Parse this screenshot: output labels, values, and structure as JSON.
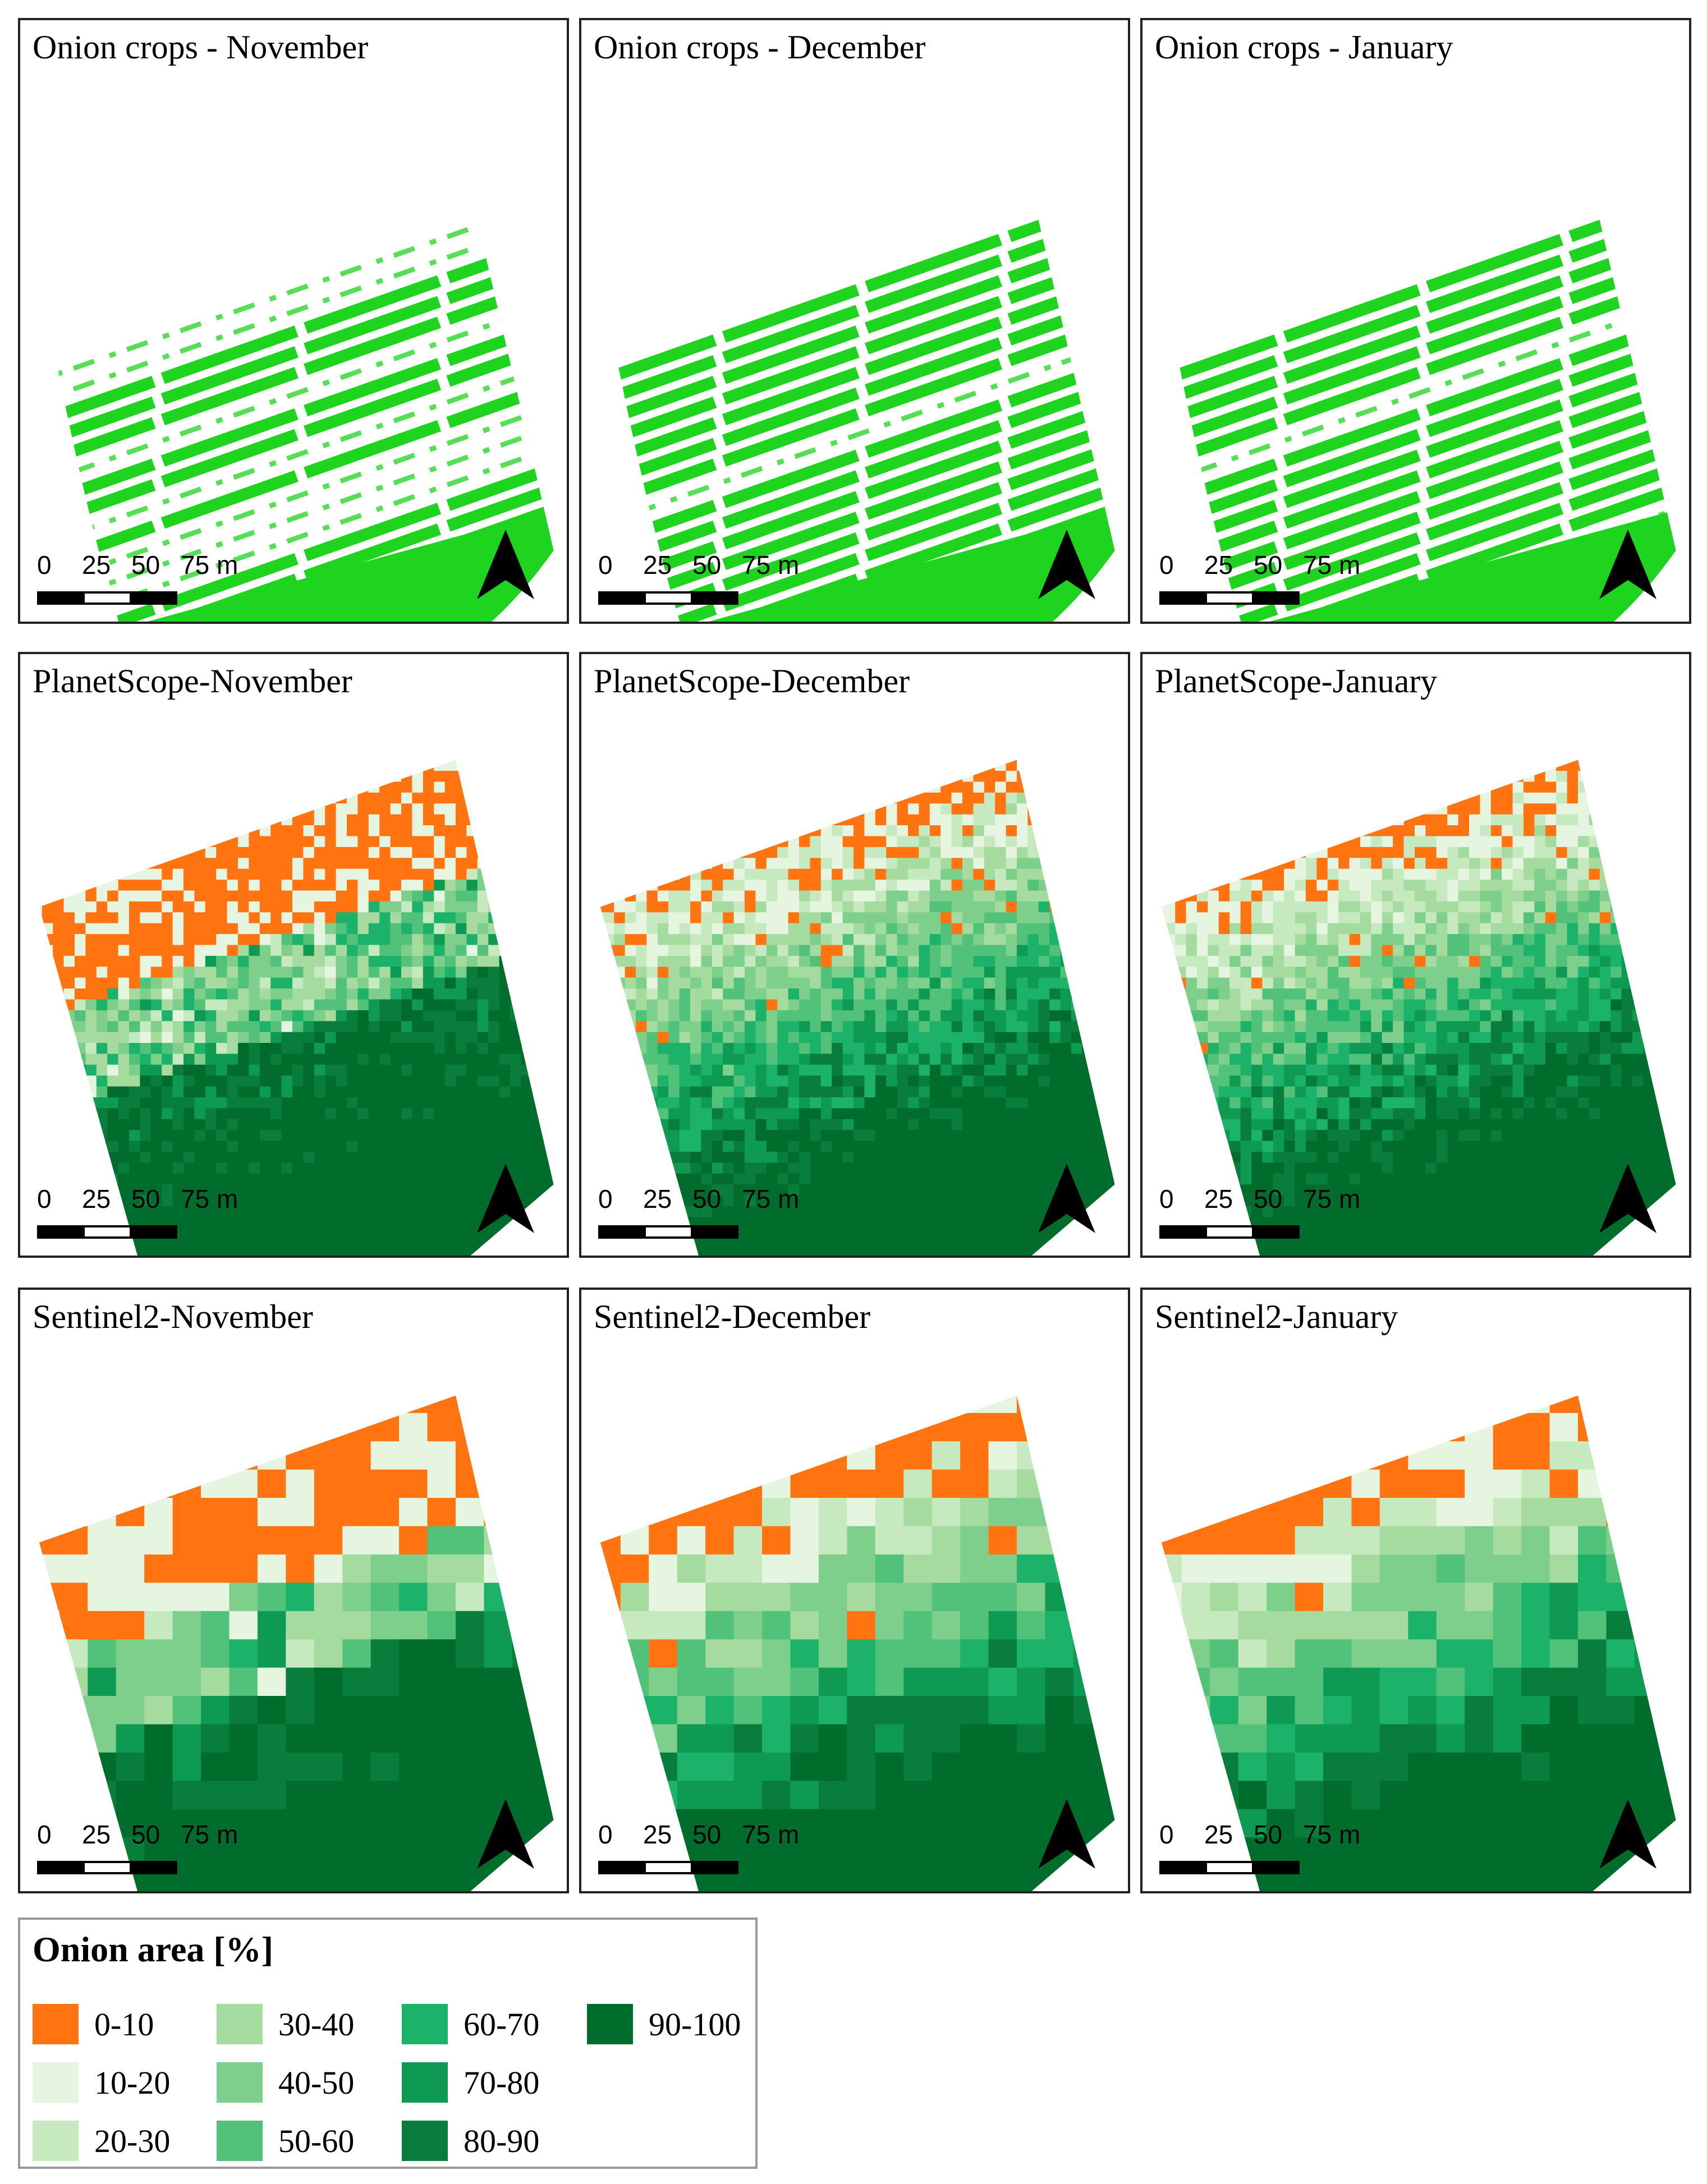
{
  "panels": [
    {
      "title": "Onion crops - November",
      "kind": "uav"
    },
    {
      "title": "Onion crops - December",
      "kind": "uav"
    },
    {
      "title": "Onion crops - January",
      "kind": "uav"
    },
    {
      "title": "PlanetScope-November",
      "kind": "planet"
    },
    {
      "title": "PlanetScope-December",
      "kind": "planet"
    },
    {
      "title": "PlanetScope-January",
      "kind": "planet"
    },
    {
      "title": "Sentinel2-November",
      "kind": "sentinel"
    },
    {
      "title": "Sentinel2-December",
      "kind": "sentinel"
    },
    {
      "title": "Sentinel2-January",
      "kind": "sentinel"
    }
  ],
  "scale_bar": {
    "labels": [
      "0",
      "25",
      "50",
      "75 m"
    ]
  },
  "north_arrow": {
    "icon": "north-arrow-icon"
  },
  "legend": {
    "title": "Onion area [%]",
    "classes": [
      {
        "label": "0-10",
        "color": "#ff7410"
      },
      {
        "label": "10-20",
        "color": "#e5f5e0"
      },
      {
        "label": "20-30",
        "color": "#c7e9c0"
      },
      {
        "label": "30-40",
        "color": "#a6dba0"
      },
      {
        "label": "40-50",
        "color": "#7fcf8c"
      },
      {
        "label": "50-60",
        "color": "#52c27a"
      },
      {
        "label": "60-70",
        "color": "#1db26a"
      },
      {
        "label": "70-80",
        "color": "#0e9a52"
      },
      {
        "label": "80-90",
        "color": "#097d3c"
      },
      {
        "label": "90-100",
        "color": "#006d2c"
      }
    ]
  },
  "uav_crop_color": "#1fd41f"
}
